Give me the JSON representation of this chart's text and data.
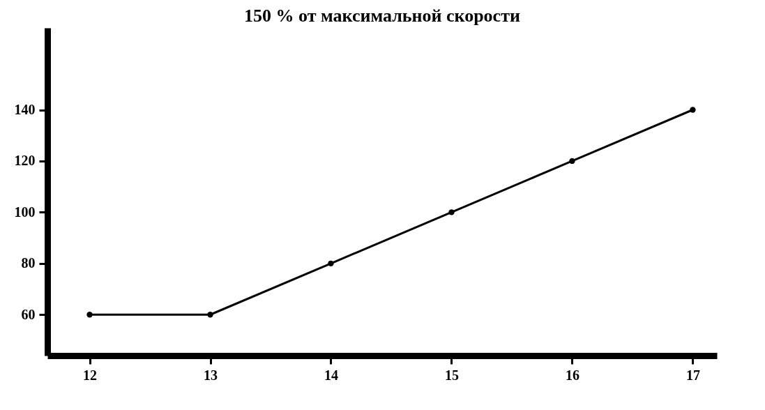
{
  "chart_data": {
    "type": "line",
    "title": "150 % от максимальной скорости",
    "x": [
      12,
      13,
      14,
      15,
      16,
      17
    ],
    "values": [
      60,
      60,
      80,
      100,
      120,
      140
    ],
    "color": "#000000",
    "marker": "circle",
    "line_style": "solid",
    "grid": false,
    "legend": false,
    "xlim": [
      11.65,
      17.2
    ],
    "xticks": [
      12,
      13,
      14,
      15,
      16,
      17
    ],
    "ylim": [
      44,
      172
    ],
    "yticks": [
      60,
      80,
      100,
      120,
      140
    ]
  }
}
